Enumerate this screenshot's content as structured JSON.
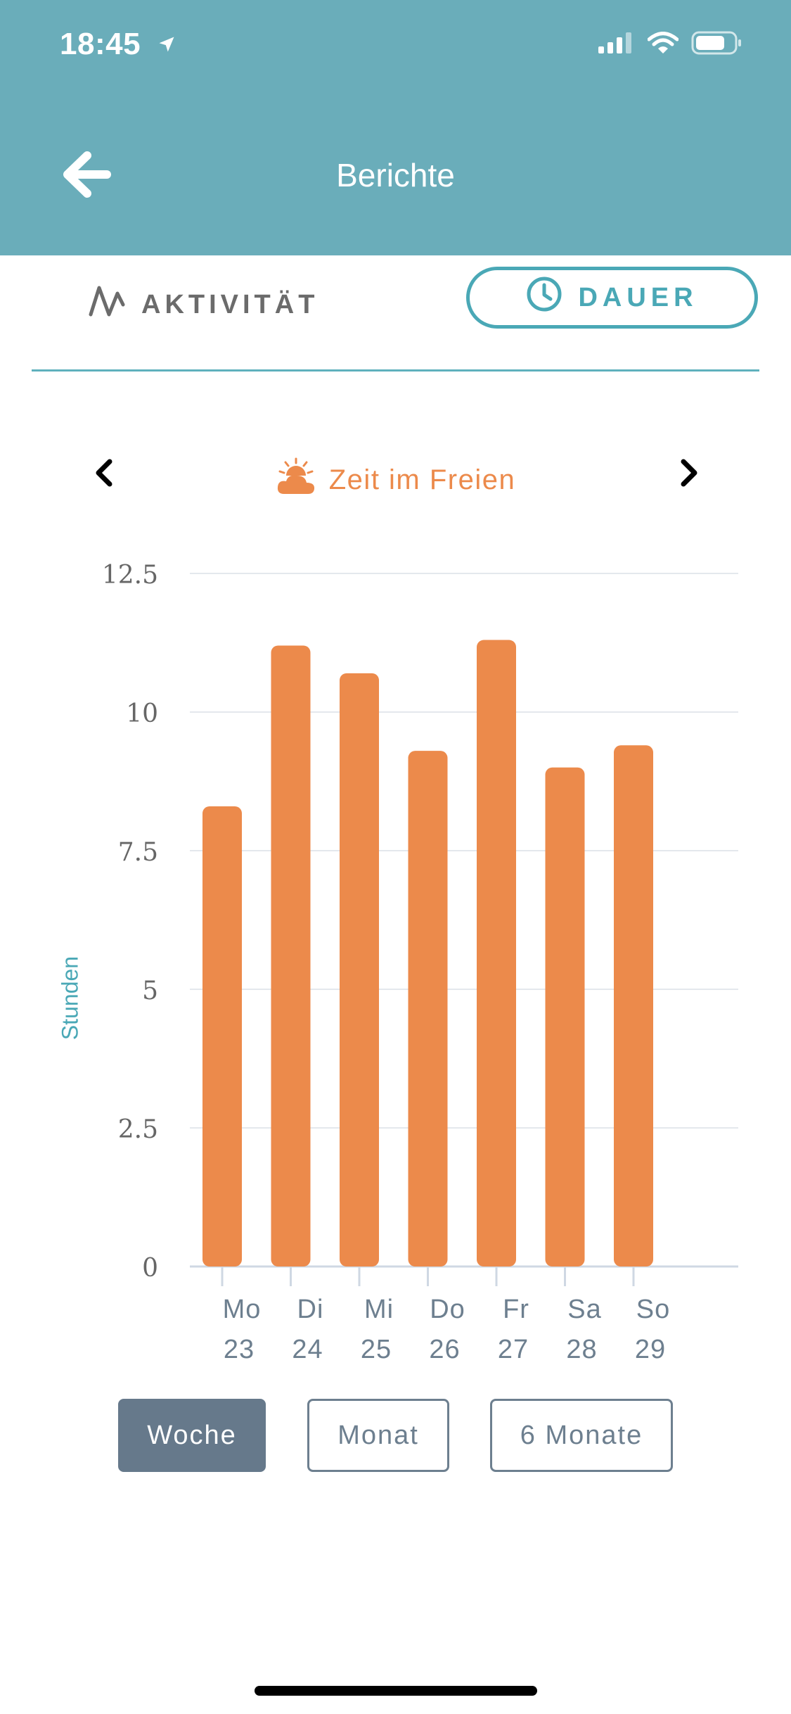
{
  "status_bar": {
    "time": "18:45"
  },
  "header": {
    "title": "Berichte"
  },
  "tabs": {
    "activity_label": "AKTIVITÄT",
    "duration_label": "DAUER",
    "selected": "DAUER"
  },
  "metric": {
    "label": "Zeit im Freien"
  },
  "ranges": {
    "items": [
      "Woche",
      "Monat",
      "6 Monate"
    ],
    "selected": "Woche"
  },
  "colors": {
    "header": "#6aadba",
    "accent": "#4aa8b6",
    "bar": "#ec8a4b",
    "range_active": "#66798b"
  },
  "chart_data": {
    "type": "bar",
    "title": "",
    "xlabel": "",
    "ylabel": "Stunden",
    "ylim": [
      0,
      12.5
    ],
    "yticks": [
      0,
      2.5,
      5,
      7.5,
      10,
      12.5
    ],
    "ytick_labels": [
      "0",
      "2.5",
      "5",
      "7.5",
      "10",
      "12.5"
    ],
    "categories": [
      [
        "Mo",
        "23"
      ],
      [
        "Di",
        "24"
      ],
      [
        "Mi",
        "25"
      ],
      [
        "Do",
        "26"
      ],
      [
        "Fr",
        "27"
      ],
      [
        "Sa",
        "28"
      ],
      [
        "So",
        "29"
      ]
    ],
    "values": [
      8.3,
      11.2,
      10.7,
      9.3,
      11.3,
      9.0,
      9.4
    ],
    "grid": true,
    "legend": "none"
  }
}
